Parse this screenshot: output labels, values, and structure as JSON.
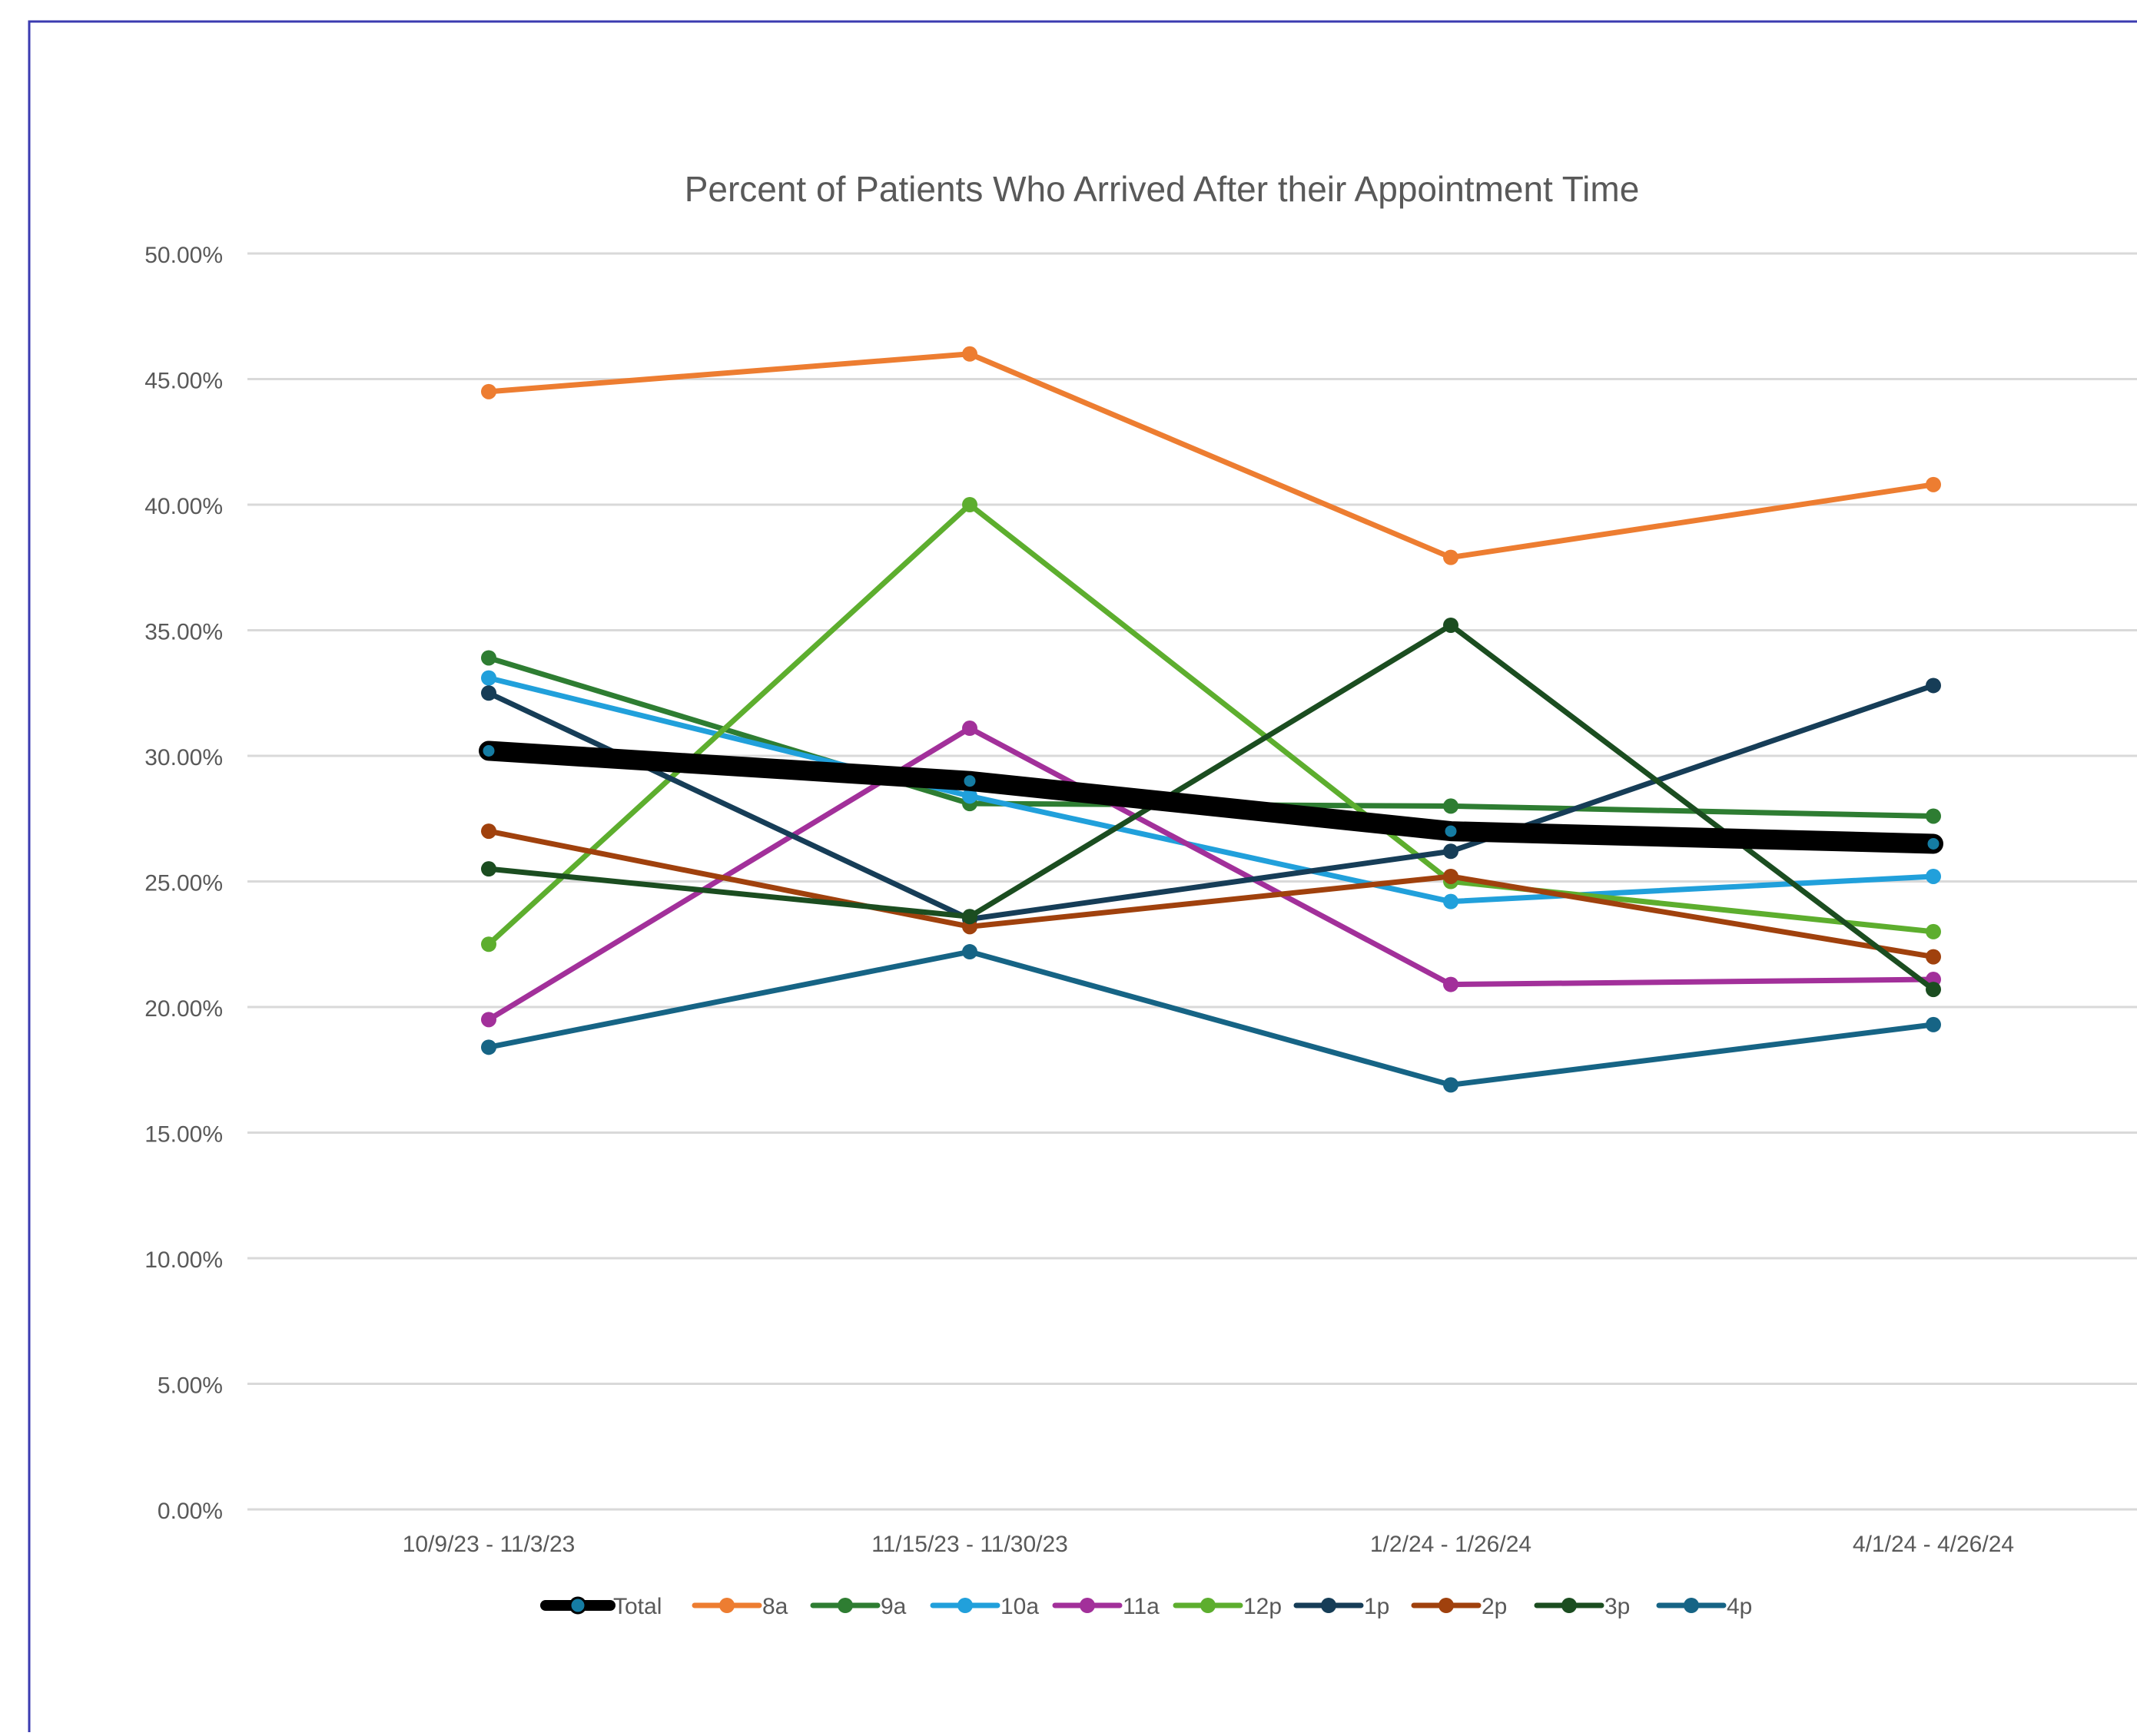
{
  "chart_data": {
    "type": "line",
    "title": "Percent of Patients Who Arrived After their Appointment Time",
    "xlabel": "",
    "ylabel": "",
    "categories": [
      "10/9/23 - 11/3/23",
      "11/15/23 - 11/30/23",
      "1/2/24 - 1/26/24",
      "4/1/24 - 4/26/24"
    ],
    "ylim": [
      0,
      0.5
    ],
    "yticks": [
      {
        "value": 0.5,
        "label": "50.00%"
      },
      {
        "value": 0.45,
        "label": "45.00%"
      },
      {
        "value": 0.4,
        "label": "40.00%"
      },
      {
        "value": 0.35,
        "label": "35.00%"
      },
      {
        "value": 0.3,
        "label": "30.00%"
      },
      {
        "value": 0.25,
        "label": "25.00%"
      },
      {
        "value": 0.2,
        "label": "20.00%"
      },
      {
        "value": 0.15,
        "label": "15.00%"
      },
      {
        "value": 0.1,
        "label": "10.00%"
      },
      {
        "value": 0.05,
        "label": "5.00%"
      },
      {
        "value": 0.0,
        "label": "0.00%"
      }
    ],
    "grid": true,
    "legend_position": "bottom",
    "series": [
      {
        "name": "Total",
        "color": "#000000",
        "thick": true,
        "values": [
          0.302,
          0.29,
          0.27,
          0.265
        ]
      },
      {
        "name": "8a",
        "color": "#ED7D31",
        "values": [
          0.445,
          0.46,
          0.379,
          0.408
        ]
      },
      {
        "name": "9a",
        "color": "#2E7D32",
        "values": [
          0.339,
          0.281,
          0.28,
          0.276
        ]
      },
      {
        "name": "10a",
        "color": "#21A0DB",
        "values": [
          0.331,
          0.284,
          0.242,
          0.252
        ]
      },
      {
        "name": "11a",
        "color": "#A2309A",
        "values": [
          0.195,
          0.311,
          0.209,
          0.211
        ]
      },
      {
        "name": "12p",
        "color": "#5DAE2E",
        "values": [
          0.225,
          0.4,
          0.25,
          0.23
        ]
      },
      {
        "name": "1p",
        "color": "#163D57",
        "values": [
          0.325,
          0.235,
          0.262,
          0.328
        ]
      },
      {
        "name": "2p",
        "color": "#A0410D",
        "values": [
          0.27,
          0.232,
          0.252,
          0.22
        ]
      },
      {
        "name": "3p",
        "color": "#1B4D20",
        "values": [
          0.255,
          0.236,
          0.352,
          0.207
        ]
      },
      {
        "name": "4p",
        "color": "#166485",
        "values": [
          0.184,
          0.222,
          0.169,
          0.193
        ]
      }
    ]
  }
}
